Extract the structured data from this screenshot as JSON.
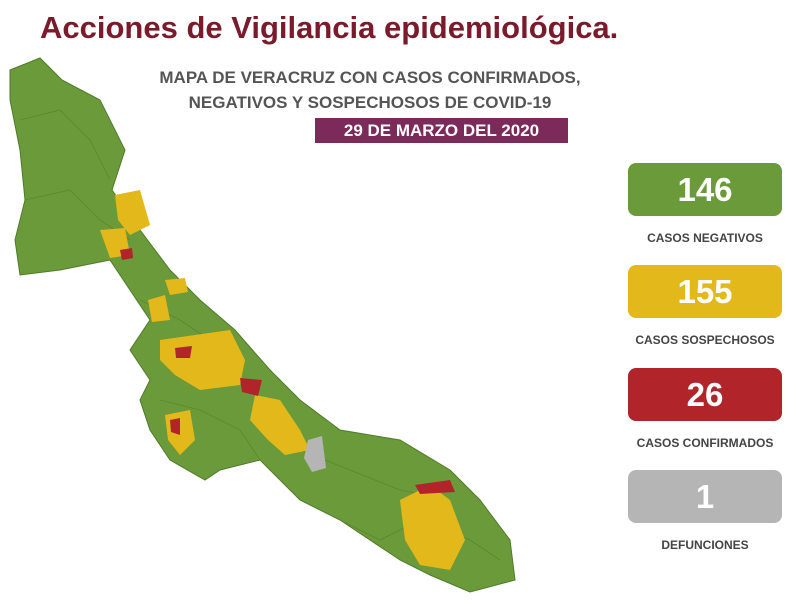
{
  "header": {
    "title": "Acciones de Vigilancia epidemiológica.",
    "subtitle": [
      "MAPA DE VERACRUZ CON CASOS CONFIRMADOS,",
      "NEGATIVOS Y SOSPECHOSOS DE COVID-19"
    ],
    "date": "29 DE MARZO DEL 2020"
  },
  "stats": [
    {
      "value": "146",
      "label": "CASOS NEGATIVOS"
    },
    {
      "value": "155",
      "label": "CASOS SOSPECHOSOS"
    },
    {
      "value": "26",
      "label": "CASOS CONFIRMADOS"
    },
    {
      "value": "1",
      "label": "DEFUNCIONES"
    }
  ]
}
